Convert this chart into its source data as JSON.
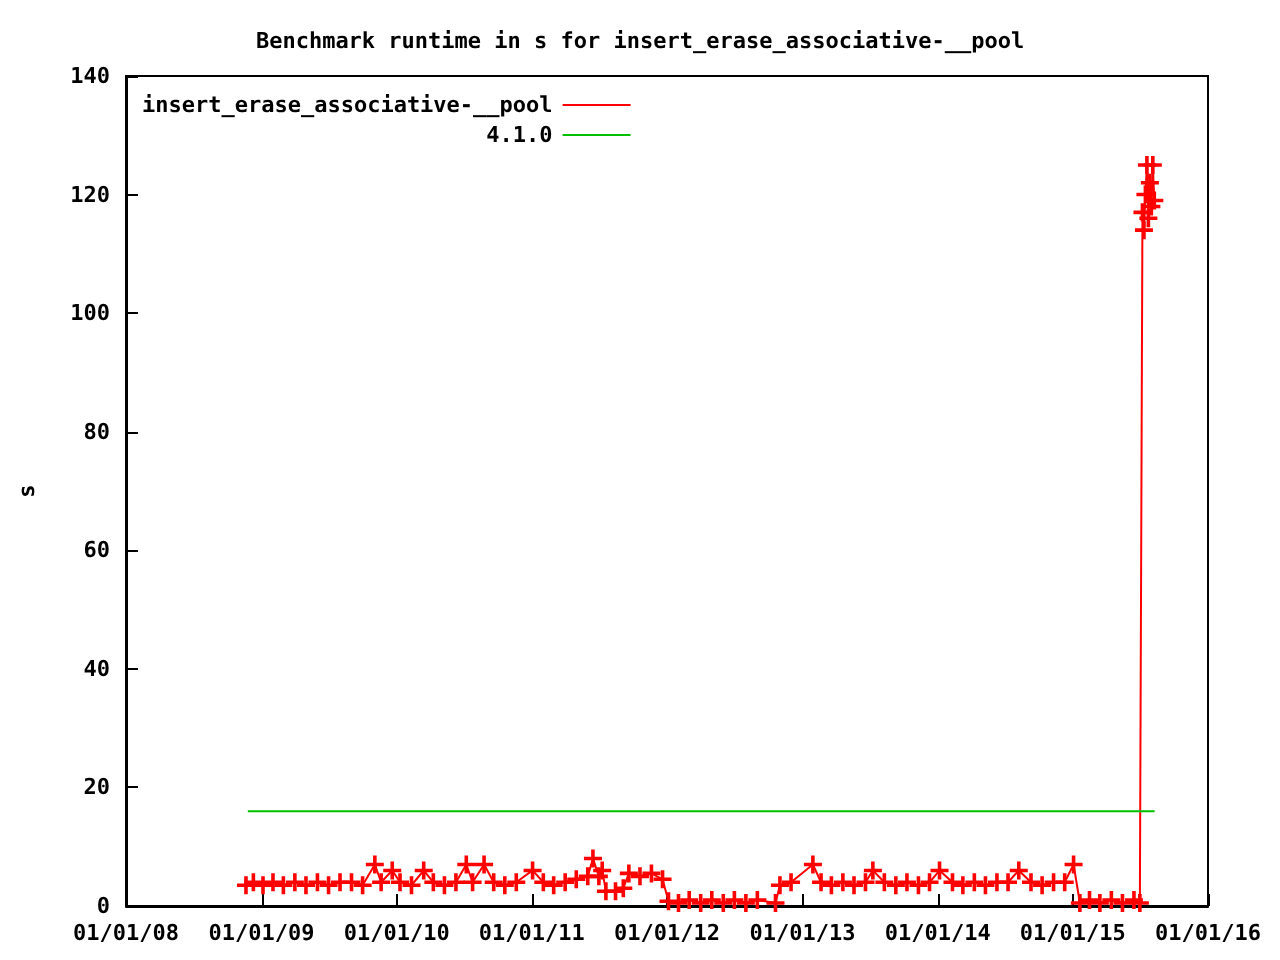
{
  "chart_data": {
    "type": "line",
    "title": "Benchmark runtime in s for insert_erase_associative-__pool",
    "ylabel": "s",
    "xlim": [
      "2008-01-01",
      "2016-01-01"
    ],
    "xticks": [
      {
        "value": "2008-01-01",
        "label": "01/01/08"
      },
      {
        "value": "2009-01-01",
        "label": "01/01/09"
      },
      {
        "value": "2010-01-01",
        "label": "01/01/10"
      },
      {
        "value": "2011-01-01",
        "label": "01/01/11"
      },
      {
        "value": "2012-01-01",
        "label": "01/01/12"
      },
      {
        "value": "2013-01-01",
        "label": "01/01/13"
      },
      {
        "value": "2014-01-01",
        "label": "01/01/14"
      },
      {
        "value": "2015-01-01",
        "label": "01/01/15"
      },
      {
        "value": "2016-01-01",
        "label": "01/01/16"
      }
    ],
    "ylim": [
      0,
      140
    ],
    "yticks": [
      0,
      20,
      40,
      60,
      80,
      100,
      120,
      140
    ],
    "grid": false,
    "legend": "top left",
    "line_style": "solid",
    "series": [
      {
        "name": "insert_erase_associative-__pool",
        "color": "#ff0000",
        "marker": "cross",
        "x": [
          "2008-11-20",
          "2008-12-10",
          "2009-01-05",
          "2009-02-01",
          "2009-03-01",
          "2009-04-01",
          "2009-05-01",
          "2009-06-01",
          "2009-07-01",
          "2009-08-01",
          "2009-09-01",
          "2009-10-01",
          "2009-11-03",
          "2009-11-20",
          "2009-12-20",
          "2010-01-10",
          "2010-02-10",
          "2010-03-15",
          "2010-04-10",
          "2010-05-10",
          "2010-06-10",
          "2010-07-08",
          "2010-07-25",
          "2010-08-25",
          "2010-09-20",
          "2010-10-20",
          "2010-11-20",
          "2011-01-03",
          "2011-02-01",
          "2011-03-01",
          "2011-04-01",
          "2011-05-01",
          "2011-06-01",
          "2011-06-15",
          "2011-07-01",
          "2011-07-10",
          "2011-07-20",
          "2011-08-15",
          "2011-09-05",
          "2011-09-20",
          "2011-10-20",
          "2011-11-20",
          "2011-12-20",
          "2012-01-05",
          "2012-02-01",
          "2012-03-01",
          "2012-04-01",
          "2012-05-01",
          "2012-06-01",
          "2012-07-01",
          "2012-08-01",
          "2012-09-01",
          "2012-10-20",
          "2012-11-01",
          "2012-12-01",
          "2013-01-29",
          "2013-02-20",
          "2013-03-20",
          "2013-04-20",
          "2013-05-20",
          "2013-06-20",
          "2013-07-10",
          "2013-08-10",
          "2013-09-10",
          "2013-10-10",
          "2013-11-10",
          "2013-12-10",
          "2014-01-06",
          "2014-02-10",
          "2014-03-10",
          "2014-04-10",
          "2014-05-10",
          "2014-06-10",
          "2014-07-10",
          "2014-08-08",
          "2014-09-10",
          "2014-10-10",
          "2014-11-10",
          "2014-12-10",
          "2015-01-03",
          "2015-01-20",
          "2015-02-15",
          "2015-03-15",
          "2015-04-15",
          "2015-05-15",
          "2015-06-15",
          "2015-07-01",
          "2015-07-08",
          "2015-07-12",
          "2015-07-16",
          "2015-07-20",
          "2015-07-24",
          "2015-07-28",
          "2015-08-01",
          "2015-08-05",
          "2015-08-09"
        ],
        "values": [
          3.5,
          4,
          3.5,
          4,
          3.5,
          4,
          3.5,
          4,
          3.5,
          4,
          4,
          3.5,
          7,
          4,
          6,
          4,
          3.5,
          6,
          4,
          3.5,
          4,
          7,
          4,
          7,
          4,
          3.5,
          4,
          6,
          4,
          3.5,
          4,
          4.5,
          5,
          8,
          5,
          6,
          2.5,
          2.5,
          3,
          5.5,
          5,
          5.5,
          4.5,
          0.8,
          0.5,
          1,
          0.5,
          1,
          0.5,
          1,
          0.5,
          1,
          0.5,
          3.5,
          4,
          7,
          4,
          3.5,
          4,
          3.5,
          4,
          6,
          4,
          3.5,
          4,
          3.5,
          4,
          6,
          4,
          3.5,
          4,
          3.5,
          4,
          4,
          6,
          4,
          3.5,
          4,
          4,
          7,
          0.5,
          1,
          0.5,
          1,
          0.5,
          1,
          0.5,
          117,
          114,
          120,
          125,
          116,
          122,
          118,
          125,
          119
        ]
      },
      {
        "name": "4.1.0",
        "color": "#00c000",
        "marker": "none",
        "x": [
          "2008-11-25",
          "2015-08-10"
        ],
        "values": [
          16,
          16
        ]
      }
    ]
  }
}
